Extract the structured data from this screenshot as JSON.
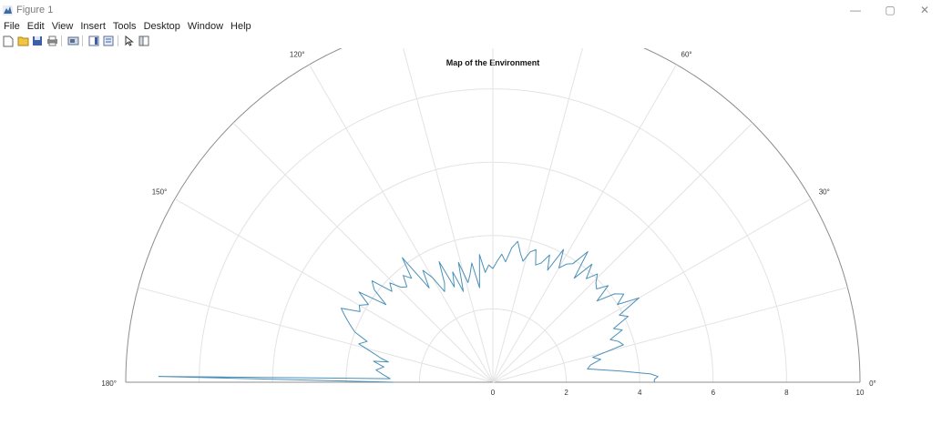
{
  "window": {
    "title": "Figure 1",
    "minimize": "—",
    "maximize": "▢",
    "close": "✕"
  },
  "menu": [
    "File",
    "Edit",
    "View",
    "Insert",
    "Tools",
    "Desktop",
    "Window",
    "Help"
  ],
  "toolbar": [
    "new-figure-icon",
    "open-file-icon",
    "save-icon",
    "print-icon",
    "link-icon",
    "insert-colorbar-icon",
    "insert-legend-icon",
    "pointer-icon",
    "property-inspector-icon"
  ],
  "chart_data": {
    "type": "polar-line",
    "title": "Map of the Environment",
    "theta_range": [
      0,
      180
    ],
    "r_range": [
      0,
      10
    ],
    "theta_ticks": [
      "0°",
      "30°",
      "60°",
      "90°",
      "120°",
      "150°",
      "180°"
    ],
    "r_ticks": [
      "0",
      "2",
      "4",
      "6",
      "8",
      "10"
    ],
    "grid": true,
    "line_color": "#4a90b8",
    "series": [
      {
        "theta": [
          0,
          1,
          2,
          3,
          5,
          8,
          10,
          12,
          14,
          16,
          18,
          20,
          22,
          24,
          26,
          28,
          30,
          32,
          34,
          36,
          38,
          40,
          42,
          44,
          46,
          48,
          50,
          52,
          54,
          56,
          58,
          60,
          62,
          64,
          66,
          68,
          70,
          72,
          74,
          76,
          78,
          80,
          82,
          84,
          86,
          88,
          90,
          92,
          94,
          96,
          98,
          100,
          102,
          104,
          106,
          108,
          110,
          112,
          114,
          116,
          118,
          120,
          122,
          124,
          126,
          128,
          130,
          132,
          134,
          136,
          138,
          140,
          142,
          144,
          146,
          148,
          150,
          152,
          154,
          156,
          158,
          160,
          162,
          164,
          166,
          168,
          169,
          170,
          172,
          174,
          176,
          178,
          179,
          180
        ],
        "r": [
          4.4,
          4.4,
          4.5,
          4.3,
          3.5,
          2.6,
          2.7,
          3.0,
          2.8,
          3.7,
          3.6,
          3.4,
          3.8,
          3.6,
          4.1,
          3.9,
          4.6,
          4.0,
          4.3,
          4.1,
          3.6,
          4.1,
          3.8,
          3.9,
          4.1,
          3.8,
          4.2,
          3.6,
          4.4,
          3.9,
          3.8,
          3.6,
          4.1,
          3.4,
          3.8,
          3.5,
          3.4,
          3.8,
          3.7,
          3.4,
          3.6,
          3.9,
          3.7,
          3.3,
          3.5,
          3.3,
          3.1,
          3.2,
          3.0,
          3.5,
          2.6,
          3.3,
          3.0,
          2.8,
          3.4,
          2.6,
          3.2,
          2.8,
          3.6,
          3.0,
          2.8,
          3.3,
          3.6,
          3.1,
          4.2,
          3.6,
          3.8,
          3.5,
          3.6,
          3.9,
          3.7,
          4.3,
          4.1,
          3.6,
          4.4,
          4.0,
          4.2,
          4.1,
          4.6,
          4.4,
          4.2,
          4.0,
          3.6,
          3.8,
          3.4,
          3.1,
          2.9,
          3.3,
          3.0,
          3.2,
          3.0,
          2.8,
          9.1,
          2.7
        ]
      }
    ]
  }
}
